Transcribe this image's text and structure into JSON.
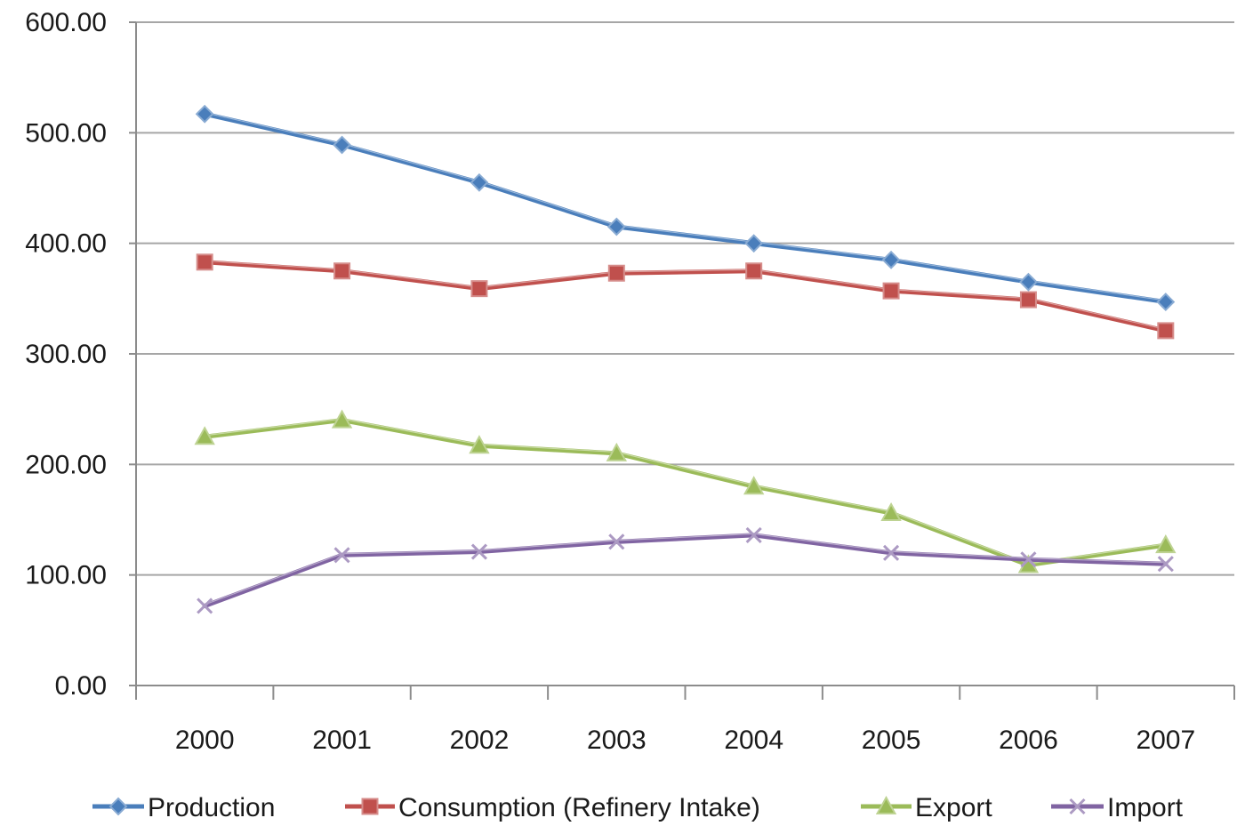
{
  "chart_data": {
    "type": "line",
    "title": "",
    "xlabel": "",
    "ylabel": "",
    "categories": [
      "2000",
      "2001",
      "2002",
      "2003",
      "2004",
      "2005",
      "2006",
      "2007"
    ],
    "ylim": [
      0,
      600
    ],
    "yticks": [
      "0.00",
      "100.00",
      "200.00",
      "300.00",
      "400.00",
      "500.00",
      "600.00"
    ],
    "grid": true,
    "legend_position": "bottom",
    "series": [
      {
        "name": "Production",
        "color": "#4a7ebb",
        "marker": "diamond",
        "values": [
          517,
          489,
          455,
          415,
          400,
          385,
          365,
          347
        ]
      },
      {
        "name": "Consumption (Refinery Intake)",
        "color": "#c0504d",
        "marker": "square",
        "values": [
          383,
          375,
          359,
          373,
          375,
          357,
          349,
          321
        ]
      },
      {
        "name": "Export",
        "color": "#9bbb59",
        "marker": "triangle",
        "values": [
          225,
          240,
          217,
          210,
          180,
          156,
          109,
          127
        ]
      },
      {
        "name": "Import",
        "color": "#8064a2",
        "marker": "x",
        "values": [
          72,
          118,
          121,
          130,
          136,
          120,
          114,
          110
        ]
      }
    ]
  }
}
